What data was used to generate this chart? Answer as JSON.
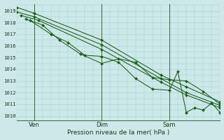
{
  "title": "Pression niveau de la mer( hPa )",
  "ylabel_ticks": [
    1010,
    1011,
    1012,
    1013,
    1014,
    1015,
    1016,
    1017,
    1018,
    1019
  ],
  "ylim": [
    1009.6,
    1019.6
  ],
  "xlim": [
    0,
    48
  ],
  "bg_color": "#cce8e8",
  "grid_color": "#aacccc",
  "line_color": "#1a5c1a",
  "xtick_labels": [
    "Ven",
    "Dim",
    "Sam"
  ],
  "xtick_positions": [
    4,
    20,
    36
  ],
  "vline_color": "#336633",
  "lines": [
    {
      "x": [
        0,
        4,
        20,
        34,
        40,
        48
      ],
      "y": [
        1019.3,
        1018.8,
        1016.5,
        1013.5,
        1012.5,
        1011.2
      ]
    },
    {
      "x": [
        0,
        4,
        20,
        34,
        40,
        48
      ],
      "y": [
        1018.9,
        1018.5,
        1016.1,
        1013.2,
        1012.0,
        1010.9
      ]
    },
    {
      "x": [
        1,
        5,
        20,
        34,
        40,
        48
      ],
      "y": [
        1018.6,
        1018.2,
        1015.7,
        1012.9,
        1011.8,
        1010.7
      ]
    },
    {
      "x": [
        2,
        6,
        10,
        15,
        20,
        24,
        28,
        32,
        36,
        40,
        44,
        48
      ],
      "y": [
        1018.3,
        1017.8,
        1016.5,
        1015.3,
        1014.5,
        1014.9,
        1014.6,
        1013.3,
        1013.1,
        1013.0,
        1012.1,
        1011.0
      ]
    },
    {
      "x": [
        3,
        8,
        12,
        16,
        20,
        24,
        28,
        32,
        36,
        38,
        40,
        42,
        44,
        46,
        48
      ],
      "y": [
        1018.2,
        1017.0,
        1016.3,
        1015.2,
        1015.1,
        1014.6,
        1013.2,
        1012.3,
        1012.2,
        1013.8,
        1010.3,
        1010.7,
        1010.5,
        1011.1,
        1010.3
      ]
    }
  ]
}
